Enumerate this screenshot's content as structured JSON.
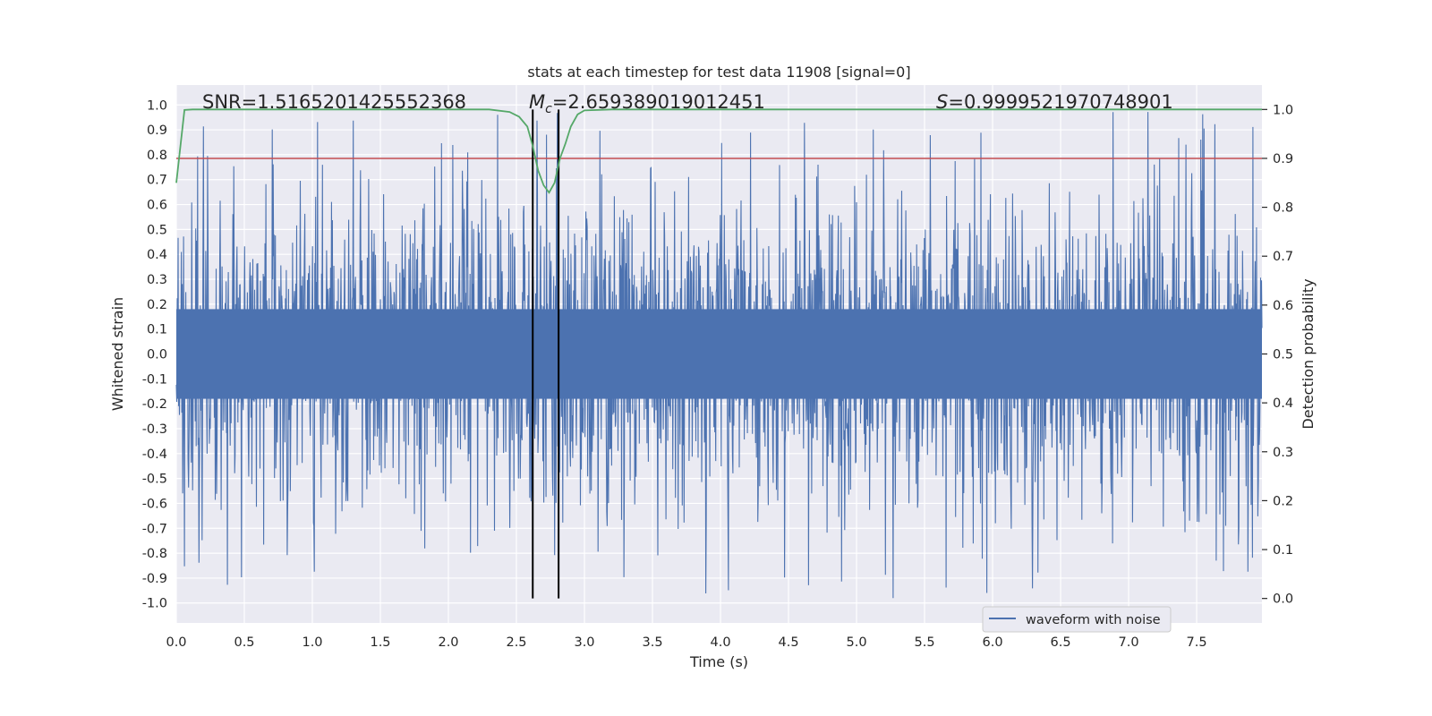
{
  "chart_data": {
    "type": "line",
    "title": "stats at each timestep for test data 11908 [signal=0]",
    "xlabel": "Time (s)",
    "ylabel_left": "Whitened strain",
    "ylabel_right": "Detection probability",
    "xlim": [
      0.0,
      7.98
    ],
    "ylim_left": [
      -1.08,
      1.08
    ],
    "ylim_right": [
      -0.05,
      1.05
    ],
    "x_ticks": [
      0.0,
      0.5,
      1.0,
      1.5,
      2.0,
      2.5,
      3.0,
      3.5,
      4.0,
      4.5,
      5.0,
      5.5,
      6.0,
      6.5,
      7.0,
      7.5
    ],
    "x_tick_labels": [
      "0.0",
      "0.5",
      "1.0",
      "1.5",
      "2.0",
      "2.5",
      "3.0",
      "3.5",
      "4.0",
      "4.5",
      "5.0",
      "5.5",
      "6.0",
      "6.5",
      "7.0",
      "7.5"
    ],
    "y_left_ticks": [
      1.0,
      0.9,
      0.8,
      0.7,
      0.6,
      0.5,
      0.4,
      0.3,
      0.2,
      0.1,
      0.0,
      -0.1,
      -0.2,
      -0.3,
      -0.4,
      -0.5,
      -0.6,
      -0.7,
      -0.8,
      -0.9,
      -1.0
    ],
    "y_left_tick_labels": [
      "1.0",
      "0.9",
      "0.8",
      "0.7",
      "0.6",
      "0.5",
      "0.4",
      "0.3",
      "0.2",
      "0.1",
      "0.0",
      "-0.1",
      "-0.2",
      "-0.3",
      "-0.4",
      "-0.5",
      "-0.6",
      "-0.7",
      "-0.8",
      "-0.9",
      "-1.0"
    ],
    "y_right_ticks": [
      1.0,
      0.9,
      0.8,
      0.7,
      0.6,
      0.5,
      0.4,
      0.3,
      0.2,
      0.1,
      0.0
    ],
    "y_right_tick_labels": [
      "1.0",
      "0.9",
      "0.8",
      "0.7",
      "0.6",
      "0.5",
      "0.4",
      "0.3",
      "0.2",
      "0.1",
      "0.0"
    ],
    "grid": true,
    "series": [
      {
        "name": "waveform with noise",
        "axis": "left",
        "color": "#4c72b0",
        "style": "dense noise trace, approx. range -0.98 to 0.98 over full time span",
        "envelope": {
          "typical_peak": 0.6,
          "max": 0.98,
          "min": -0.98,
          "noise_floor": 0.18
        }
      },
      {
        "name": "detection probability",
        "axis": "right",
        "color": "#55a868",
        "x": [
          0.0,
          0.06,
          0.12,
          0.5,
          1.0,
          1.5,
          2.0,
          2.3,
          2.45,
          2.52,
          2.58,
          2.62,
          2.66,
          2.7,
          2.74,
          2.78,
          2.82,
          2.86,
          2.9,
          2.95,
          3.0,
          3.2,
          4.0,
          5.0,
          6.0,
          7.0,
          7.98
        ],
        "y": [
          0.85,
          0.999,
          1.0,
          1.0,
          1.0,
          1.0,
          1.0,
          1.0,
          0.995,
          0.985,
          0.965,
          0.925,
          0.875,
          0.845,
          0.83,
          0.85,
          0.9,
          0.93,
          0.965,
          0.99,
          0.998,
          1.0,
          1.0,
          1.0,
          1.0,
          1.0,
          1.0
        ]
      }
    ],
    "threshold": {
      "axis": "right",
      "value": 0.9,
      "color": "#c44e52"
    },
    "vertical_markers": {
      "x": [
        2.62,
        2.81
      ],
      "from": 0.0,
      "to": 1.0,
      "axis": "right",
      "color": "#000000"
    },
    "annotations": {
      "snr": "SNR=1.5165201425552368",
      "mc_symbol": "M",
      "mc_subscript": "c",
      "mc_value": "=2.659389019012451",
      "s_symbol": "S",
      "s_value": "=0.9999521970748901"
    },
    "legend": {
      "label": "waveform with noise",
      "placement": "lower-right"
    }
  },
  "colors": {
    "plot_bg": "#eaeaf2",
    "grid": "#ffffff",
    "waveform": "#4c72b0",
    "probability": "#55a868",
    "threshold": "#c44e52"
  }
}
